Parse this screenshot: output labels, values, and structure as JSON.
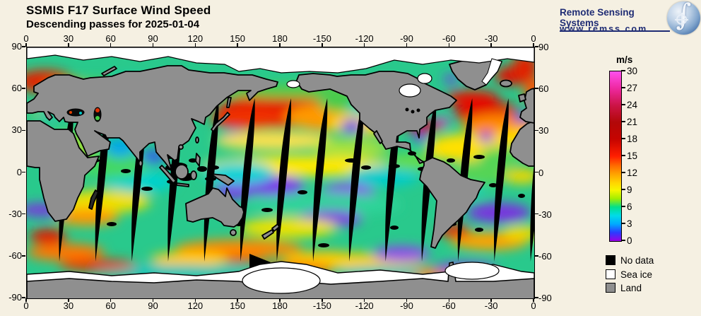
{
  "header": {
    "title": "SSMIS F17 Surface Wind Speed",
    "subtitle": "Descending passes for 2025-01-04"
  },
  "logo": {
    "name": "Remote Sensing Systems",
    "url": "www.remss.com"
  },
  "axes": {
    "lon_labels": [
      "0",
      "30",
      "60",
      "90",
      "120",
      "150",
      "180",
      "-150",
      "-120",
      "-90",
      "-60",
      "-30",
      "0"
    ],
    "lat_labels": [
      "90",
      "60",
      "30",
      "0",
      "-30",
      "-60",
      "-90"
    ]
  },
  "colorbar": {
    "unit_label": "m/s",
    "tick_labels": [
      "30",
      "27",
      "24",
      "21",
      "18",
      "15",
      "12",
      "9",
      "6",
      "3",
      "0"
    ],
    "max": 30,
    "min": 0,
    "step": 3,
    "colors_top_to_bottom": [
      "#ff50ee",
      "#cc1446",
      "#c60400",
      "#ff1e00",
      "#ffa800",
      "#f6f600",
      "#00e08c",
      "#00dce8",
      "#00aaff",
      "#2b3bff",
      "#9900e6"
    ]
  },
  "legend": {
    "items": [
      {
        "label": "No data",
        "color": "#000000"
      },
      {
        "label": "Sea ice",
        "color": "#ffffff"
      },
      {
        "label": "Land",
        "color": "#8f8f8f"
      }
    ]
  },
  "map_colors": {
    "background": "#F5F0E2",
    "land": "#8f8f8f",
    "coast": "#000000",
    "no_data": "#000000",
    "sea_ice": "#ffffff",
    "logo_navy": "#1F2C74"
  }
}
